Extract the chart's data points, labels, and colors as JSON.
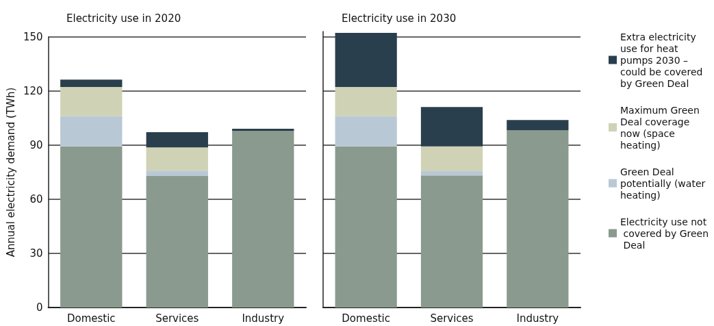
{
  "chart_data": [
    {
      "type": "bar",
      "title": "Electricity use in 2020",
      "ylabel": "Annual electricity demand (TWh)",
      "categories": [
        "Domestic",
        "Services",
        "Industry"
      ],
      "stacked": true,
      "ylim": [
        0,
        150
      ],
      "yticks": [
        0,
        30,
        60,
        90,
        120,
        150
      ],
      "grid": "y",
      "legend": false,
      "series": [
        {
          "color": "#8a9a8e",
          "values": [
            89.3,
            72.9,
            97.9
          ]
        },
        {
          "color": "#b9c8d5",
          "values": [
            16.7,
            3.0,
            0
          ]
        },
        {
          "color": "#cfd2b5",
          "values": [
            16.3,
            12.9,
            0
          ]
        },
        {
          "color": "#2a3f4d",
          "values": [
            4.1,
            8.4,
            1.2
          ]
        }
      ]
    },
    {
      "type": "bar",
      "title": "Electricity use in 2030",
      "categories": [
        "Domestic",
        "Services",
        "Industry"
      ],
      "stacked": true,
      "ylim": [
        0,
        153
      ],
      "yticks": [
        0,
        30,
        60,
        90,
        120,
        150
      ],
      "grid": "y",
      "tick_labels": "x",
      "legend": "right",
      "series": [
        {
          "name": "Electricity use not covered by Green Deal",
          "color": "#8a9a8e",
          "values": [
            89.3,
            73.2,
            98.3
          ]
        },
        {
          "name": "Green Deal potentially (water heating)",
          "color": "#b9c8d5",
          "values": [
            16.7,
            2.7,
            0
          ]
        },
        {
          "name": "Maximum Green Deal coverage now (space heating)",
          "color": "#cfd2b5",
          "values": [
            16.3,
            13.4,
            0
          ]
        },
        {
          "name": "Extra electricity use for heat pumps 2030 – could be covered by Green Deal",
          "color": "#2a3f4d",
          "values": [
            30.0,
            21.9,
            5.7
          ]
        }
      ]
    }
  ]
}
